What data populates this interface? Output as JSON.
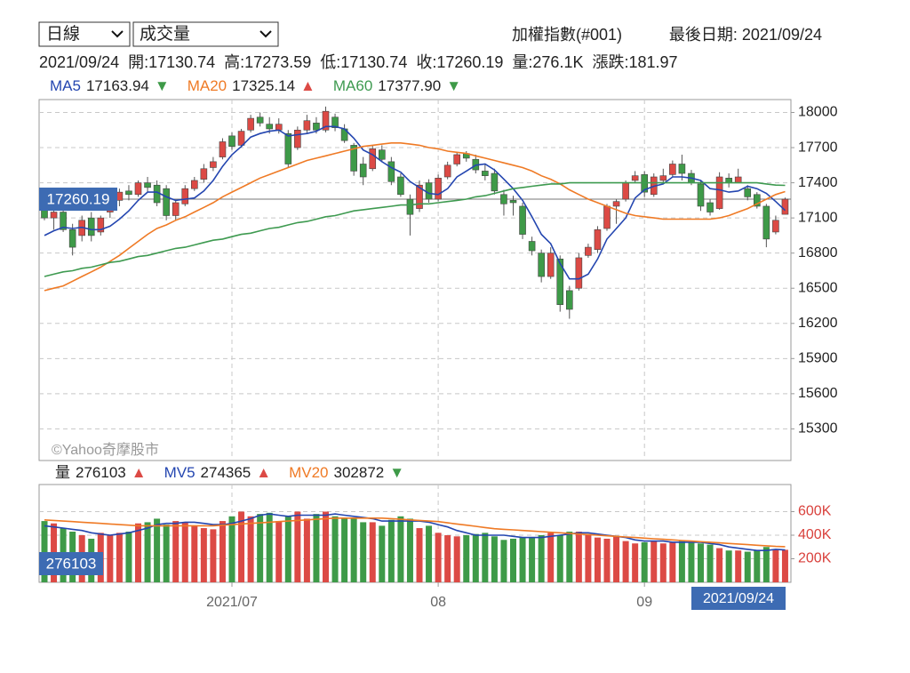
{
  "header": {
    "selects": [
      "日線",
      "成交量"
    ],
    "index": "加權指數(#001)",
    "last_date": "最後日期: 2021/09/24",
    "info": [
      "2021/09/24",
      "開:17130.74",
      "高:17273.59",
      "低:17130.74",
      "收:17260.19",
      "量:276.1K",
      "漲跌:181.97"
    ]
  },
  "watermark": "©Yahoo奇摩股市",
  "chart_data": [
    {
      "type": "candlestick",
      "up_color": "#dc4a45",
      "down_color": "#3e9a48",
      "last_line_color": "#777777",
      "label_box_color": "#3d6bb3",
      "categories": [
        null,
        null,
        null,
        null,
        null,
        null,
        null,
        null,
        null,
        null,
        null,
        null,
        null,
        null,
        null,
        null,
        null,
        null,
        null,
        null,
        "2021/07",
        null,
        null,
        null,
        null,
        null,
        null,
        null,
        null,
        null,
        null,
        null,
        null,
        null,
        null,
        null,
        null,
        null,
        null,
        null,
        null,
        null,
        "08",
        null,
        null,
        null,
        null,
        null,
        null,
        null,
        null,
        null,
        null,
        null,
        null,
        null,
        null,
        null,
        null,
        null,
        null,
        null,
        null,
        null,
        "09",
        null,
        null,
        null,
        null,
        null,
        null,
        null,
        null,
        null,
        null,
        null,
        null,
        null,
        null,
        "2021/09/24"
      ],
      "open": [
        17200,
        17100,
        17150,
        17000,
        16950,
        17100,
        16980,
        17150,
        17250,
        17330,
        17300,
        17400,
        17380,
        17350,
        17120,
        17220,
        17350,
        17430,
        17530,
        17620,
        17800,
        17720,
        17850,
        17960,
        17900,
        17850,
        17820,
        17700,
        17850,
        17910,
        17850,
        17960,
        17860,
        17720,
        17560,
        17520,
        17680,
        17580,
        17450,
        17260,
        17180,
        17400,
        17260,
        17450,
        17560,
        17650,
        17600,
        17500,
        17480,
        17300,
        17250,
        17200,
        16900,
        16800,
        16600,
        16750,
        16480,
        16500,
        16780,
        16830,
        17010,
        17200,
        17260,
        17420,
        17470,
        17300,
        17420,
        17470,
        17560,
        17480,
        17390,
        17230,
        17180,
        17440,
        17400,
        17350,
        17300,
        17200,
        16980,
        17130.74
      ],
      "high": [
        17250,
        17180,
        17200,
        17050,
        17120,
        17150,
        17120,
        17250,
        17350,
        17380,
        17420,
        17450,
        17420,
        17380,
        17250,
        17380,
        17450,
        17560,
        17620,
        17780,
        17830,
        17860,
        17980,
        18000,
        17960,
        17950,
        17850,
        17880,
        17980,
        17960,
        18050,
        17990,
        17900,
        17740,
        17620,
        17720,
        17720,
        17620,
        17480,
        17300,
        17420,
        17430,
        17470,
        17580,
        17660,
        17670,
        17640,
        17560,
        17520,
        17340,
        17290,
        17230,
        16940,
        16830,
        16850,
        16780,
        16520,
        16800,
        16880,
        17030,
        17220,
        17260,
        17420,
        17500,
        17500,
        17480,
        17520,
        17590,
        17640,
        17510,
        17420,
        17260,
        17490,
        17480,
        17520,
        17380,
        17320,
        17220,
        17120,
        17273.59
      ],
      "low": [
        17080,
        17000,
        16980,
        16780,
        16900,
        16900,
        16950,
        17100,
        17200,
        17250,
        17280,
        17320,
        17200,
        17080,
        17080,
        17200,
        17330,
        17400,
        17500,
        17600,
        17680,
        17700,
        17830,
        17880,
        17820,
        17820,
        17530,
        17680,
        17820,
        17820,
        17830,
        17840,
        17740,
        17460,
        17380,
        17500,
        17580,
        17380,
        17280,
        16950,
        17150,
        17230,
        17240,
        17430,
        17540,
        17580,
        17480,
        17420,
        17300,
        17120,
        17120,
        16920,
        16780,
        16550,
        16580,
        16300,
        16240,
        16480,
        16760,
        16800,
        16990,
        17050,
        17240,
        17400,
        17280,
        17280,
        17400,
        17450,
        17420,
        17380,
        17160,
        17120,
        17170,
        17360,
        17400,
        17250,
        17180,
        16850,
        16960,
        17130.74
      ],
      "close": [
        17100,
        17150,
        17000,
        16850,
        17080,
        16950,
        17100,
        17220,
        17320,
        17300,
        17400,
        17360,
        17230,
        17120,
        17230,
        17350,
        17420,
        17520,
        17580,
        17750,
        17710,
        17840,
        17950,
        17910,
        17860,
        17900,
        17560,
        17850,
        17930,
        17850,
        18010,
        17870,
        17760,
        17500,
        17450,
        17690,
        17600,
        17410,
        17300,
        17130,
        17380,
        17260,
        17440,
        17550,
        17640,
        17610,
        17510,
        17460,
        17330,
        17220,
        17230,
        16960,
        16820,
        16600,
        16800,
        16360,
        16320,
        16760,
        16850,
        17000,
        17200,
        17240,
        17400,
        17460,
        17320,
        17450,
        17460,
        17560,
        17480,
        17400,
        17200,
        17150,
        17450,
        17400,
        17450,
        17280,
        17200,
        16920,
        17080,
        17260.19
      ],
      "ylim": [
        15030,
        18110
      ],
      "yticks": [
        15300,
        15600,
        15900,
        16200,
        16500,
        16800,
        17100,
        17400,
        17700,
        18000
      ],
      "grid": true,
      "series": [
        {
          "name": "MA5",
          "color": "#2446b0",
          "trend": "▼",
          "legend_value": "17163.94",
          "values": [
            16950,
            16990,
            17020,
            17010,
            17020,
            17000,
            17000,
            17030,
            17090,
            17160,
            17250,
            17320,
            17320,
            17280,
            17250,
            17260,
            17270,
            17330,
            17420,
            17540,
            17640,
            17710,
            17790,
            17820,
            17840,
            17850,
            17800,
            17810,
            17820,
            17840,
            17880,
            17880,
            17860,
            17780,
            17680,
            17640,
            17580,
            17530,
            17490,
            17410,
            17360,
            17310,
            17300,
            17350,
            17450,
            17500,
            17550,
            17560,
            17510,
            17430,
            17350,
            17250,
            17110,
            16960,
            16880,
            16710,
            16580,
            16580,
            16620,
            16750,
            16920,
            17010,
            17100,
            17270,
            17340,
            17370,
            17390,
            17450,
            17450,
            17440,
            17420,
            17350,
            17340,
            17320,
            17330,
            17370,
            17350,
            17310,
            17240,
            17163.94
          ]
        },
        {
          "name": "MA20",
          "color": "#ef7a25",
          "trend": "▲",
          "legend_value": "17325.14",
          "values": [
            16480,
            16500,
            16520,
            16560,
            16600,
            16640,
            16680,
            16730,
            16780,
            16840,
            16900,
            16960,
            17010,
            17040,
            17080,
            17110,
            17150,
            17190,
            17230,
            17280,
            17320,
            17360,
            17400,
            17440,
            17470,
            17500,
            17530,
            17560,
            17590,
            17610,
            17630,
            17650,
            17670,
            17690,
            17710,
            17720,
            17730,
            17740,
            17740,
            17730,
            17720,
            17700,
            17690,
            17670,
            17660,
            17650,
            17630,
            17610,
            17590,
            17570,
            17550,
            17530,
            17500,
            17460,
            17430,
            17390,
            17340,
            17300,
            17260,
            17230,
            17200,
            17170,
            17140,
            17120,
            17110,
            17100,
            17090,
            17090,
            17090,
            17090,
            17090,
            17090,
            17100,
            17120,
            17150,
            17180,
            17220,
            17260,
            17300,
            17325.14
          ]
        },
        {
          "name": "MA60",
          "color": "#3e9a50",
          "trend": "▼",
          "legend_value": "17377.90",
          "values": [
            16600,
            16620,
            16640,
            16650,
            16670,
            16680,
            16700,
            16720,
            16730,
            16750,
            16770,
            16780,
            16800,
            16820,
            16840,
            16850,
            16870,
            16890,
            16910,
            16920,
            16940,
            16960,
            16970,
            16990,
            17010,
            17020,
            17040,
            17060,
            17070,
            17090,
            17110,
            17120,
            17140,
            17160,
            17170,
            17180,
            17190,
            17200,
            17210,
            17210,
            17220,
            17220,
            17230,
            17240,
            17250,
            17260,
            17280,
            17290,
            17310,
            17330,
            17350,
            17360,
            17370,
            17380,
            17390,
            17390,
            17400,
            17400,
            17400,
            17400,
            17400,
            17400,
            17400,
            17400,
            17400,
            17400,
            17400,
            17400,
            17400,
            17400,
            17400,
            17400,
            17400,
            17400,
            17400,
            17400,
            17400,
            17390,
            17380,
            17377.9
          ]
        }
      ]
    },
    {
      "type": "bar",
      "name": "量",
      "trend": "▲",
      "up_color": "#dc4a45",
      "down_color": "#3e9a48",
      "tick_color": "#d9413c",
      "label_box_color": "#3d6bb3",
      "ylim": [
        0,
        830000
      ],
      "yticks": [
        {
          "value": 200000,
          "label": "200K"
        },
        {
          "value": 400000,
          "label": "400K"
        },
        {
          "value": 600000,
          "label": "600K"
        }
      ],
      "grid": true,
      "values": [
        520000,
        500000,
        460000,
        430000,
        400000,
        370000,
        420000,
        400000,
        420000,
        430000,
        500000,
        510000,
        540000,
        490000,
        520000,
        510000,
        480000,
        460000,
        450000,
        520000,
        560000,
        600000,
        560000,
        580000,
        590000,
        520000,
        560000,
        600000,
        540000,
        580000,
        600000,
        560000,
        550000,
        540000,
        510000,
        510000,
        480000,
        530000,
        560000,
        540000,
        460000,
        480000,
        420000,
        400000,
        390000,
        400000,
        410000,
        420000,
        390000,
        360000,
        370000,
        380000,
        380000,
        400000,
        420000,
        400000,
        430000,
        430000,
        400000,
        380000,
        370000,
        390000,
        350000,
        330000,
        340000,
        350000,
        330000,
        340000,
        350000,
        340000,
        330000,
        320000,
        290000,
        270000,
        270000,
        260000,
        270000,
        300000,
        280000,
        276103
      ],
      "series": [
        {
          "name": "MV5",
          "color": "#2446b0",
          "trend": "▲",
          "values": [
            480000,
            470000,
            460000,
            450000,
            440000,
            420000,
            410000,
            400000,
            410000,
            420000,
            440000,
            460000,
            490000,
            500000,
            500000,
            510000,
            510000,
            500000,
            490000,
            490000,
            500000,
            520000,
            540000,
            570000,
            580000,
            570000,
            560000,
            570000,
            570000,
            570000,
            570000,
            580000,
            570000,
            560000,
            550000,
            540000,
            520000,
            520000,
            520000,
            520000,
            520000,
            510000,
            490000,
            470000,
            440000,
            420000,
            400000,
            400000,
            400000,
            400000,
            390000,
            380000,
            380000,
            380000,
            390000,
            400000,
            410000,
            420000,
            420000,
            410000,
            400000,
            390000,
            380000,
            360000,
            350000,
            350000,
            350000,
            340000,
            340000,
            340000,
            340000,
            330000,
            320000,
            300000,
            290000,
            280000,
            270000,
            270000,
            280000,
            274365
          ]
        },
        {
          "name": "MV20",
          "color": "#ef7a25",
          "trend": "▼",
          "values": [
            530000,
            525000,
            520000,
            515000,
            510000,
            505000,
            500000,
            495000,
            490000,
            485000,
            480000,
            480000,
            480000,
            480000,
            480000,
            480000,
            480000,
            480000,
            480000,
            485000,
            490000,
            495000,
            500000,
            505000,
            510000,
            515000,
            520000,
            525000,
            530000,
            535000,
            540000,
            545000,
            545000,
            545000,
            545000,
            545000,
            545000,
            540000,
            535000,
            530000,
            525000,
            520000,
            515000,
            505000,
            495000,
            485000,
            475000,
            465000,
            455000,
            450000,
            445000,
            440000,
            435000,
            430000,
            425000,
            420000,
            415000,
            410000,
            405000,
            400000,
            395000,
            390000,
            385000,
            380000,
            375000,
            370000,
            365000,
            360000,
            355000,
            350000,
            345000,
            340000,
            335000,
            330000,
            325000,
            320000,
            315000,
            310000,
            305000,
            302872
          ]
        }
      ]
    }
  ]
}
